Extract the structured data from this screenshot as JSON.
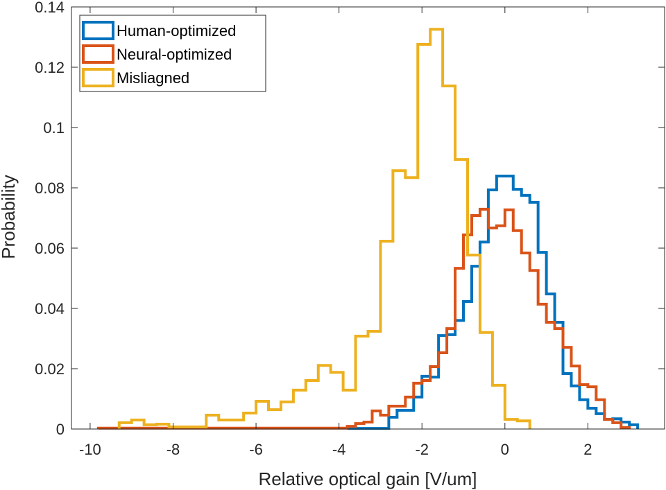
{
  "chart_data": {
    "type": "histogram",
    "title": "",
    "xlabel": "Relative optical gain [V/um]",
    "ylabel": "Probability",
    "xlim": [
      -10.45,
      3.85
    ],
    "ylim": [
      0,
      0.14
    ],
    "xticks": [
      -10,
      -8,
      -6,
      -4,
      -2,
      0,
      2
    ],
    "xtick_labels": [
      "-10",
      "-8",
      "-6",
      "-4",
      "-2",
      "0",
      "2"
    ],
    "yticks": [
      0,
      0.02,
      0.04,
      0.06,
      0.08,
      0.1,
      0.12,
      0.14
    ],
    "ytick_labels": [
      "0",
      "0.02",
      "0.04",
      "0.06",
      "0.08",
      "0.1",
      "0.12",
      "0.14"
    ],
    "grid": false,
    "box": true,
    "legend_position": "top-left",
    "series": [
      {
        "name": "Human-optimized",
        "color": "#0072BD",
        "bin_start": -3.8,
        "bin_width": 0.2,
        "values": [
          0.0002,
          0.0002,
          0.0002,
          0.0002,
          0.0002,
          0.0039,
          0.0062,
          0.0062,
          0.0106,
          0.0175,
          0.0172,
          0.031,
          0.0313,
          0.036,
          0.0423,
          0.054,
          0.062,
          0.0793,
          0.0839,
          0.0839,
          0.0795,
          0.0775,
          0.0752,
          0.0586,
          0.0448,
          0.0354,
          0.0184,
          0.0143,
          0.0097,
          0.0069,
          0.0051,
          0.0032,
          0.0034,
          0.0023,
          0.0014
        ]
      },
      {
        "name": "Neural-optimized",
        "color": "#D95319",
        "bin_start": -9.8,
        "bin_width": 0.2,
        "values": [
          0.0003,
          0.0003,
          0.0003,
          0.0003,
          0.0003,
          0.0003,
          0.0003,
          0.0003,
          0.0003,
          0.0003,
          0.0003,
          0.0003,
          0.0003,
          0.0003,
          0.0003,
          0.0003,
          0.0003,
          0.0003,
          0.0003,
          0.0003,
          0.0003,
          0.0003,
          0.0003,
          0.0003,
          0.0003,
          0.0003,
          0.0003,
          0.0003,
          0.0003,
          0.0003,
          0.0009,
          0.0018,
          0.0023,
          0.006,
          0.0046,
          0.0076,
          0.0076,
          0.0106,
          0.0152,
          0.0161,
          0.0207,
          0.0253,
          0.0333,
          0.0533,
          0.0644,
          0.0708,
          0.0729,
          0.0667,
          0.0674,
          0.0727,
          0.0658,
          0.0584,
          0.0526,
          0.0414,
          0.0354,
          0.0333,
          0.0271,
          0.0209,
          0.0147,
          0.014,
          0.0097,
          0.0032,
          0.0021,
          0.0005
        ]
      },
      {
        "name": "Misliagned",
        "color": "#EDB120",
        "bin_start": -9.3,
        "bin_width": 0.3,
        "values": [
          0.0021,
          0.003,
          0.0014,
          0.0016,
          0.0007,
          0.0007,
          0.0007,
          0.0046,
          0.003,
          0.003,
          0.0053,
          0.0092,
          0.0064,
          0.009,
          0.0129,
          0.0161,
          0.0211,
          0.0188,
          0.0129,
          0.0308,
          0.0324,
          0.0623,
          0.0857,
          0.0834,
          0.1276,
          0.1326,
          0.1138,
          0.0894,
          0.0577,
          0.032,
          0.0145,
          0.0032,
          0.0027
        ]
      }
    ]
  }
}
